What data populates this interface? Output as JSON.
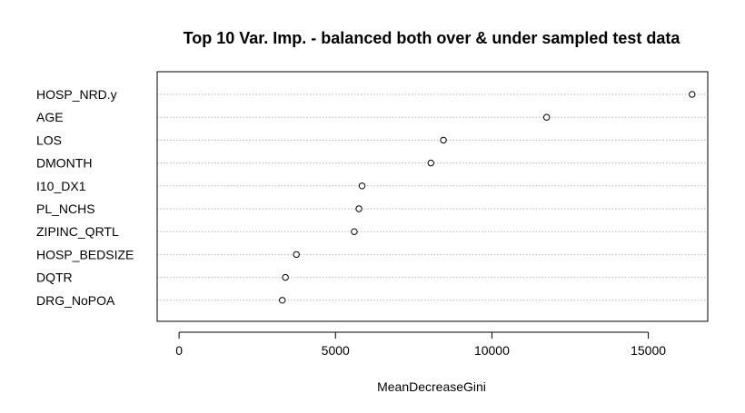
{
  "chart_data": {
    "type": "scatter",
    "title": "Top 10 Var. Imp. - balanced both over & under sampled test data",
    "xlabel": "MeanDecreaseGini",
    "ylabel": "",
    "xlim": [
      -700,
      16900
    ],
    "x_ticks": [
      0,
      5000,
      10000,
      15000
    ],
    "x_tick_labels": [
      "0",
      "5000",
      "10000",
      "15000"
    ],
    "grid": "dotted horizontal lines per variable",
    "categories": [
      "HOSP_NRD.y",
      "AGE",
      "LOS",
      "DMONTH",
      "I10_DX1",
      "PL_NCHS",
      "ZIPINC_QRTL",
      "HOSP_BEDSIZE",
      "DQTR",
      "DRG_NoPOA"
    ],
    "values": [
      16400,
      11750,
      8450,
      8050,
      5850,
      5750,
      5600,
      3750,
      3400,
      3300
    ],
    "colors": {
      "points": "#000000",
      "grid": "#b5b5b5",
      "frame": "#000000"
    }
  }
}
